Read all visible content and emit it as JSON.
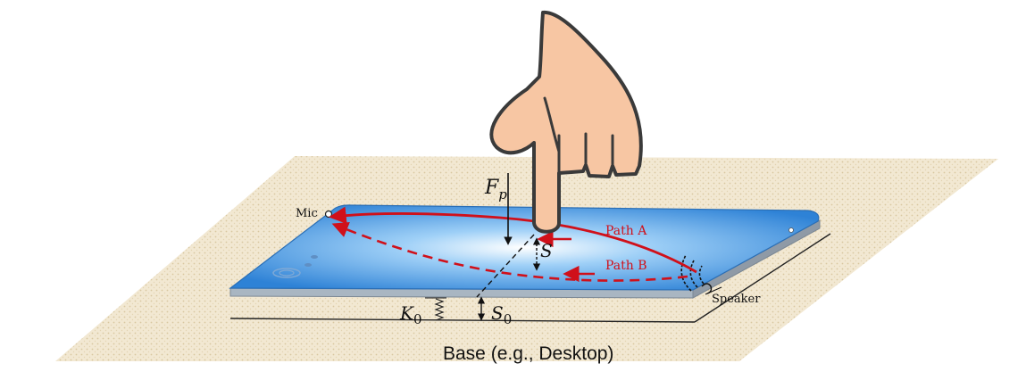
{
  "labels": {
    "mic": "Mic",
    "speaker": "Speaker",
    "path_a": "Path A",
    "path_b": "Path B",
    "force_symbol": "F",
    "force_subscript": "p",
    "displacement": "S",
    "spring_symbol": "K",
    "spring_subscript": "0",
    "base_displacement_symbol": "S",
    "base_displacement_subscript": "0",
    "base": "Base (e.g., Desktop)"
  },
  "colors": {
    "path": "#d0101a",
    "tablet": "#3a8fe0",
    "base_fill": "#efe3c8",
    "hand_fill": "#f7c6a3",
    "outline": "#333333"
  },
  "icons": {
    "hand": "pointing-hand-icon",
    "spring": "spring-icon",
    "speaker": "speaker-icon",
    "mic": "mic-icon"
  }
}
